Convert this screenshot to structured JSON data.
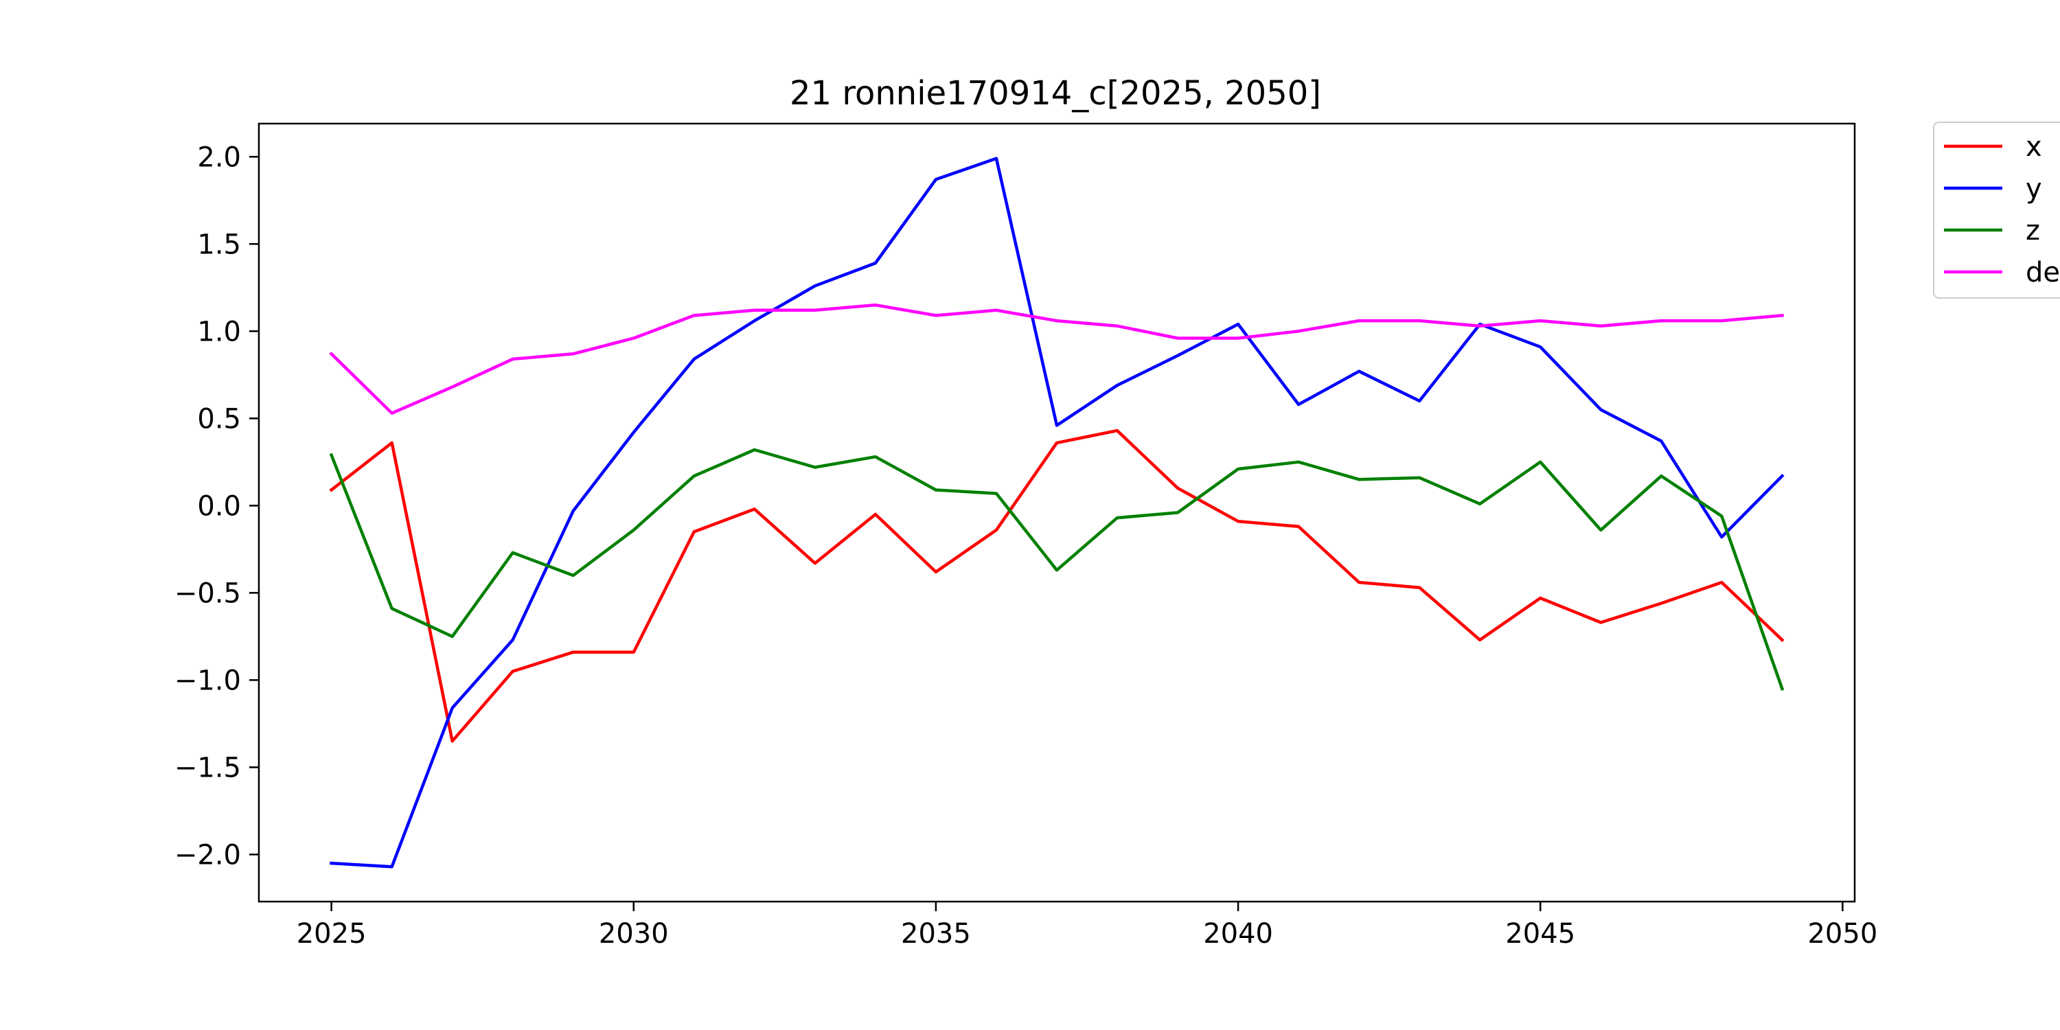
{
  "chart_data": {
    "type": "line",
    "title": "21 ronnie170914_c[2025, 2050]",
    "xlabel": "",
    "ylabel": "",
    "xlim": [
      2023.8,
      2050.2
    ],
    "ylim": [
      -2.27,
      2.19
    ],
    "grid": false,
    "legend_position": "outside-top-right",
    "x_ticks": [
      2025,
      2030,
      2035,
      2040,
      2045,
      2050
    ],
    "y_ticks": [
      2.0,
      1.5,
      1.0,
      0.5,
      0.0,
      -0.5,
      -1.0,
      -1.5,
      -2.0
    ],
    "x_tick_labels": [
      "2025",
      "2030",
      "2035",
      "2040",
      "2045",
      "2050"
    ],
    "y_tick_labels": [
      "2.0",
      "1.5",
      "1.0",
      "0.5",
      "0.0",
      "−0.5",
      "−1.0",
      "−1.5",
      "−2.0"
    ],
    "x": [
      2025,
      2026,
      2027,
      2028,
      2029,
      2030,
      2031,
      2032,
      2033,
      2034,
      2035,
      2036,
      2037,
      2038,
      2039,
      2040,
      2041,
      2042,
      2043,
      2044,
      2045,
      2046,
      2047,
      2048,
      2049
    ],
    "series": [
      {
        "name": "x",
        "color": "#ff0000",
        "values": [
          0.09,
          0.36,
          -1.35,
          -0.95,
          -0.84,
          -0.84,
          -0.15,
          -0.02,
          -0.33,
          -0.05,
          -0.38,
          -0.14,
          0.36,
          0.43,
          0.1,
          -0.09,
          -0.12,
          -0.44,
          -0.47,
          -0.77,
          -0.53,
          -0.67,
          -0.56,
          -0.44,
          -0.77
        ]
      },
      {
        "name": "y",
        "color": "#0000ff",
        "values": [
          -2.05,
          -2.07,
          -1.16,
          -0.77,
          -0.03,
          0.42,
          0.84,
          1.06,
          1.26,
          1.39,
          1.87,
          1.99,
          0.46,
          0.69,
          0.86,
          1.04,
          0.58,
          0.77,
          0.6,
          1.04,
          0.91,
          0.55,
          0.37,
          -0.18,
          0.17
        ]
      },
      {
        "name": "z",
        "color": "#008000",
        "values": [
          0.29,
          -0.59,
          -0.75,
          -0.27,
          -0.4,
          -0.14,
          0.17,
          0.32,
          0.22,
          0.28,
          0.09,
          0.07,
          -0.37,
          -0.07,
          -0.04,
          0.21,
          0.25,
          0.15,
          0.16,
          0.01,
          0.25,
          -0.14,
          0.17,
          -0.06,
          -1.05
        ]
      },
      {
        "name": "de",
        "color": "#ff00ff",
        "values": [
          0.87,
          0.53,
          0.68,
          0.84,
          0.87,
          0.96,
          1.09,
          1.12,
          1.12,
          1.15,
          1.09,
          1.12,
          1.06,
          1.03,
          0.96,
          0.96,
          1.0,
          1.06,
          1.06,
          1.03,
          1.06,
          1.03,
          1.06,
          1.06,
          1.09
        ]
      }
    ]
  }
}
